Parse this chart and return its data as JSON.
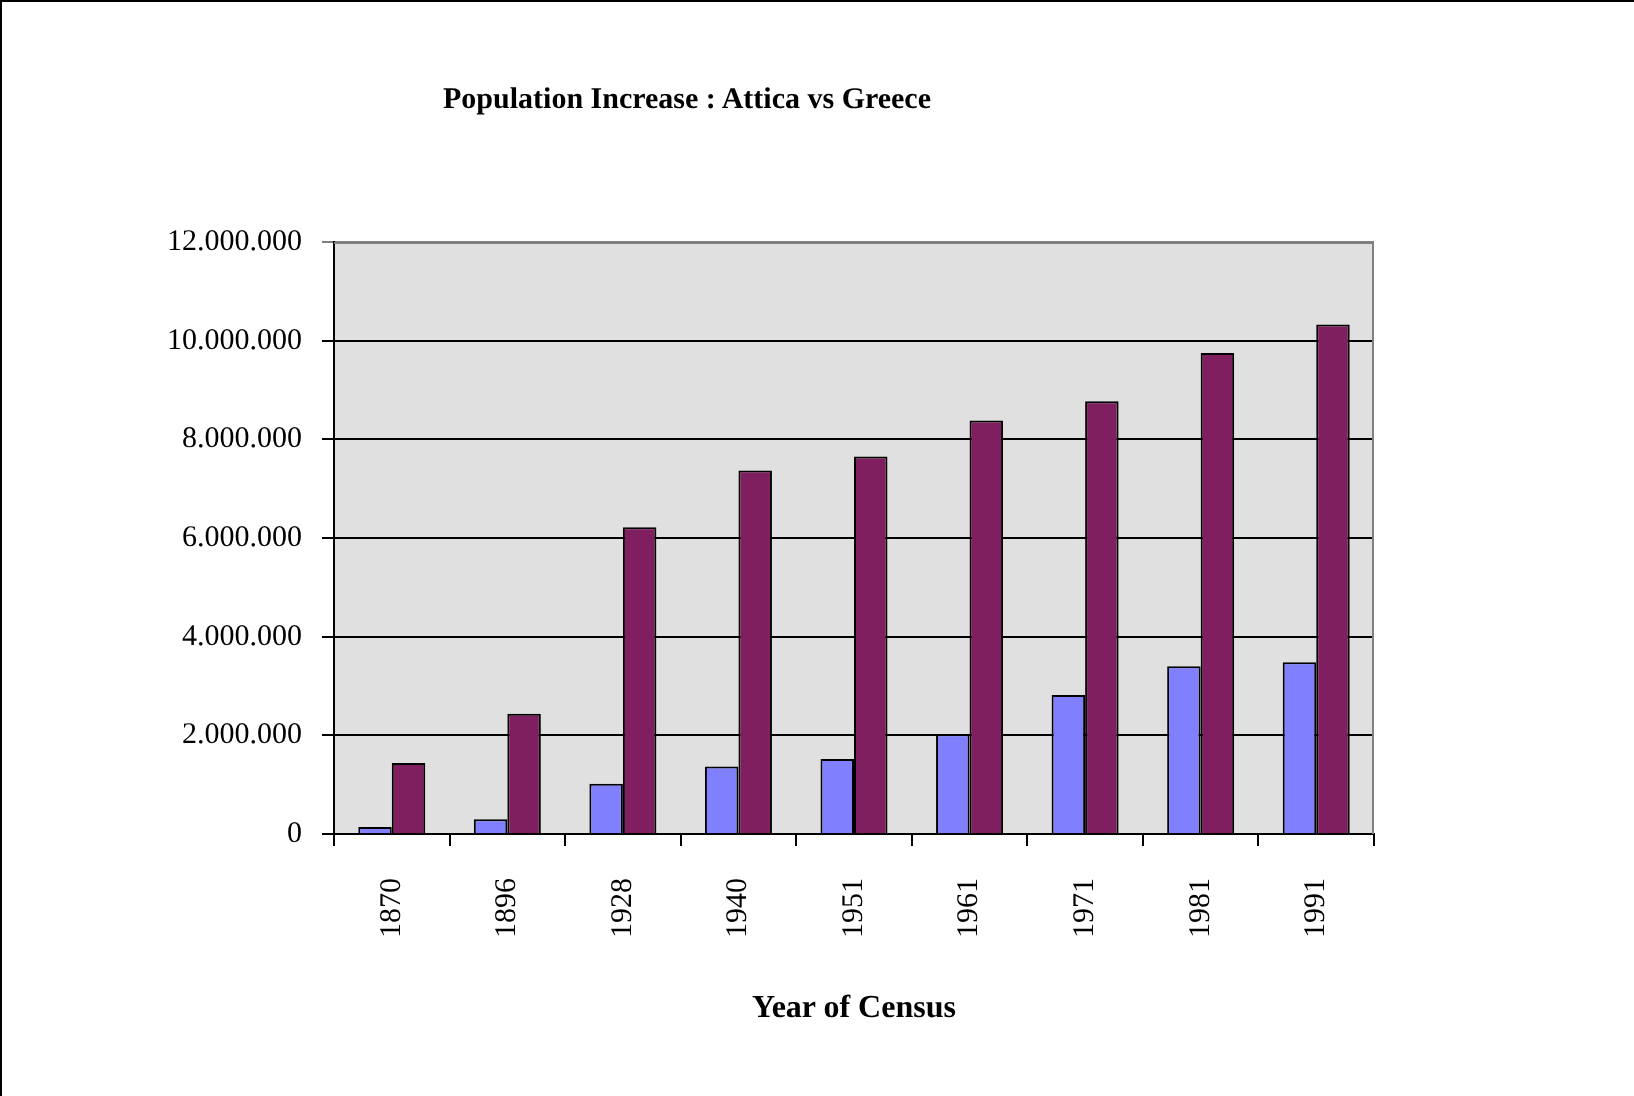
{
  "chart_data": {
    "type": "bar",
    "title": "Population Increase : Attica vs Greece",
    "xlabel": "Year of Census",
    "categories": [
      "1870",
      "1896",
      "1928",
      "1940",
      "1951",
      "1961",
      "1971",
      "1981",
      "1991"
    ],
    "series": [
      {
        "color": "#8080ff",
        "values": [
          140000,
          300000,
          1020000,
          1370000,
          1520000,
          2020000,
          2820000,
          3400000,
          3480000
        ]
      },
      {
        "color": "#7f1f5f",
        "values": [
          1440000,
          2440000,
          6220000,
          7370000,
          7650000,
          8380000,
          8770000,
          9750000,
          10330000
        ]
      }
    ],
    "ylim": [
      0,
      12000000
    ],
    "yticks": [
      0,
      {
        "value": 2000000,
        "label": "2.000.000"
      },
      {
        "value": 4000000,
        "label": "4.000.000"
      },
      {
        "value": 6000000,
        "label": "6.000.000"
      },
      {
        "value": 8000000,
        "label": "8.000.000"
      },
      {
        "value": 10000000,
        "label": "10.000.000"
      },
      {
        "value": 12000000,
        "label": "12.000.000"
      }
    ],
    "grid": "y",
    "legend": false
  }
}
